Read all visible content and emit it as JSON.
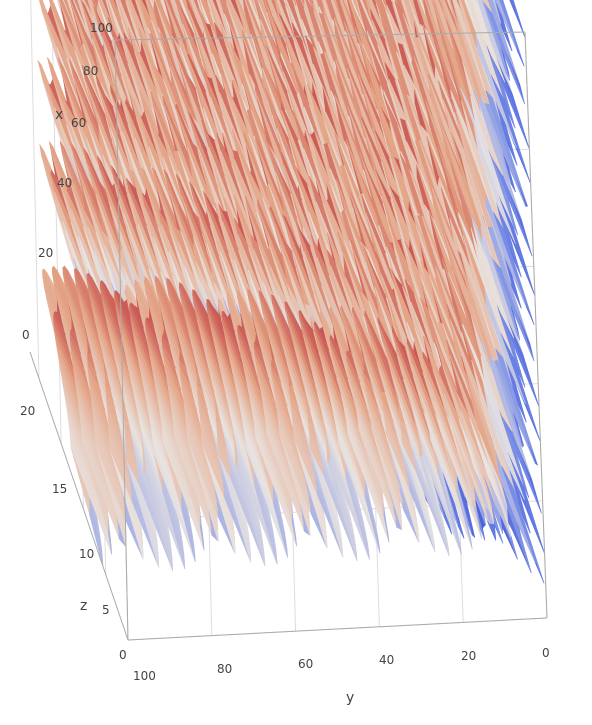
{
  "chart_data": {
    "type": "surface",
    "title": "",
    "axes": {
      "x": {
        "label": "x",
        "range": [
          0,
          100
        ],
        "ticks": [
          "0",
          "20",
          "40",
          "60",
          "80",
          "100"
        ]
      },
      "y": {
        "label": "y",
        "range": [
          0,
          100
        ],
        "ticks": [
          "100",
          "80",
          "60",
          "40",
          "20",
          "0"
        ]
      },
      "z": {
        "label": "z",
        "range": [
          0,
          22
        ],
        "ticks": [
          "0",
          "5",
          "10",
          "15",
          "20"
        ]
      }
    },
    "surface": {
      "description_of_values": "z = 10 + 10 * sin(sqrt(x^2 + y^2)) * cos(y)",
      "function": {
        "offset": 10,
        "amplitude": 10
      },
      "grid_resolution": 100,
      "colorscale": [
        "#2b3fcc",
        "#6f86e6",
        "#e9e4e1",
        "#e4a384",
        "#b2182b"
      ]
    },
    "grid_lines": true,
    "legend": "none"
  }
}
